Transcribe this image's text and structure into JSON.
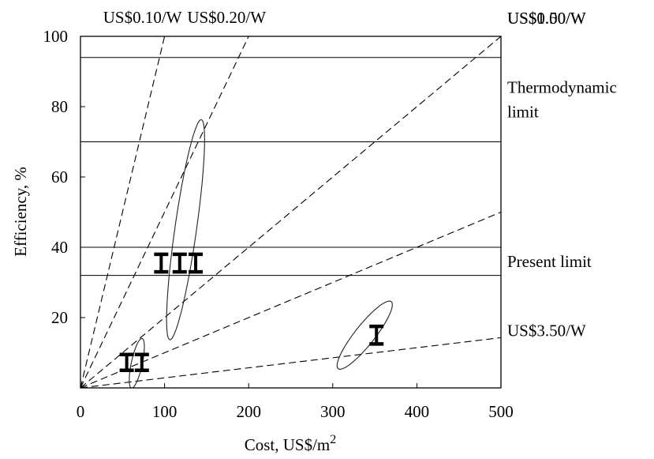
{
  "chart_data": {
    "type": "line",
    "xlabel": "Cost, US$/m",
    "xlabel_sup": "2",
    "ylabel": "Efficiency, %",
    "xlim": [
      0,
      500
    ],
    "ylim": [
      0,
      100
    ],
    "x_ticks": [
      0,
      100,
      200,
      300,
      400,
      500
    ],
    "y_ticks": [
      20,
      40,
      60,
      80,
      100
    ],
    "cost_per_watt_lines": [
      {
        "label": "US$0.10/W",
        "cost_per_watt": 0.1
      },
      {
        "label": "US$0.20/W",
        "cost_per_watt": 0.2
      },
      {
        "label": "US$0.50/W",
        "cost_per_watt": 0.5
      },
      {
        "label": "US$1.00/W",
        "cost_per_watt": 1.0
      },
      {
        "label": "US$3.50/W",
        "cost_per_watt": 3.5
      }
    ],
    "horizontal_bands": [
      {
        "label": "Thermodynamic limit",
        "label_lines": [
          "Thermodynamic",
          "limit"
        ],
        "y_low": 70,
        "y_high": 94
      },
      {
        "label": "Present limit",
        "label_lines": [
          "Present limit"
        ],
        "y_low": 32,
        "y_high": 40
      }
    ],
    "regions": [
      {
        "center": [
          125,
          45
        ],
        "semi_axis_along": 37,
        "semi_axis_across": 11,
        "angle_deg": 56
      },
      {
        "center": [
          67,
          7
        ],
        "semi_axis_along": 10.5,
        "semi_axis_across": 4.5,
        "angle_deg": 35
      },
      {
        "center": [
          338,
          15
        ],
        "semi_axis_along": 34,
        "semi_axis_across": 4.2,
        "angle_deg": 15
      }
    ],
    "error_bars": [
      {
        "x": 96,
        "y_low": 33,
        "y_high": 38
      },
      {
        "x": 118,
        "y_low": 33,
        "y_high": 38
      },
      {
        "x": 137,
        "y_low": 33,
        "y_high": 38
      },
      {
        "x": 55,
        "y_low": 5,
        "y_high": 9.5
      },
      {
        "x": 73,
        "y_low": 5,
        "y_high": 9.5
      },
      {
        "x": 352,
        "y_low": 12.5,
        "y_high": 17.5
      }
    ],
    "grid": false
  }
}
